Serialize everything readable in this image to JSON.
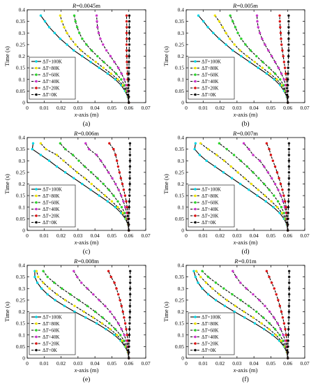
{
  "figure": {
    "legend_labels": [
      "ΔT=100K",
      "ΔT=80K",
      "ΔT=60K",
      "ΔT=40K",
      "ΔT=20K",
      "ΔT=0K"
    ],
    "series_colors": [
      "#00d8e8",
      "#f2e600",
      "#2bd42b",
      "#cc33cc",
      "#dd1111",
      "#111111"
    ],
    "line_color": "#000000"
  },
  "chart_data": [
    {
      "type": "line",
      "title": "R=0.0045m",
      "panel_label": "(a)",
      "xlabel": "x-axis (m)",
      "ylabel": "Time (s)",
      "xlim": [
        0,
        0.07
      ],
      "ylim": [
        0,
        0.4
      ],
      "xticks": [
        "0",
        "0.01",
        "0.02",
        "0.03",
        "0.04",
        "0.05",
        "0.06",
        "0.07"
      ],
      "yticks": [
        "0",
        "0.05",
        "0.1",
        "0.15",
        "0.2",
        "0.25",
        "0.3",
        "0.35",
        "0.4"
      ],
      "legend_position": "lower-left",
      "y": [
        0.0,
        0.025,
        0.05,
        0.075,
        0.1,
        0.125,
        0.15,
        0.175,
        0.2,
        0.225,
        0.25,
        0.275,
        0.3,
        0.325,
        0.35,
        0.375
      ],
      "series": [
        {
          "name": "ΔT=100K",
          "x": [
            0.06,
            0.0594,
            0.0578,
            0.0555,
            0.052,
            0.0475,
            0.0425,
            0.0375,
            0.0325,
            0.0275,
            0.0235,
            0.0195,
            0.0162,
            0.013,
            0.0105,
            0.008
          ]
        },
        {
          "name": "ΔT=80K",
          "x": [
            0.06,
            0.0596,
            0.0584,
            0.0565,
            0.0535,
            0.0495,
            0.045,
            0.0405,
            0.036,
            0.0318,
            0.0285,
            0.0258,
            0.0235,
            0.0218,
            0.0205,
            0.0195
          ]
        },
        {
          "name": "ΔT=60K",
          "x": [
            0.06,
            0.0597,
            0.0588,
            0.0575,
            0.0555,
            0.0525,
            0.049,
            0.0452,
            0.0415,
            0.038,
            0.035,
            0.0325,
            0.0308,
            0.0295,
            0.0285,
            0.0278
          ]
        },
        {
          "name": "ΔT=40K",
          "x": [
            0.06,
            0.0598,
            0.0593,
            0.0585,
            0.0573,
            0.0557,
            0.0538,
            0.0515,
            0.0492,
            0.0468,
            0.0448,
            0.0432,
            0.0422,
            0.0415,
            0.0412,
            0.041
          ]
        },
        {
          "name": "ΔT=20K",
          "x": [
            0.06,
            0.0599,
            0.0597,
            0.0595,
            0.0593,
            0.0592,
            0.059,
            0.0589,
            0.0588,
            0.0587,
            0.0587,
            0.0588,
            0.0587,
            0.0588,
            0.0587,
            0.0587
          ]
        },
        {
          "name": "ΔT=0K",
          "x": [
            0.06,
            0.06,
            0.06,
            0.06,
            0.06,
            0.06,
            0.0601,
            0.0601,
            0.0602,
            0.0602,
            0.0603,
            0.0603,
            0.0603,
            0.0603,
            0.0603,
            0.0603
          ]
        }
      ]
    },
    {
      "type": "line",
      "title": "R=0.005m",
      "panel_label": "(b)",
      "xlabel": "x-axis (m)",
      "ylabel": "Time (s)",
      "xlim": [
        0,
        0.07
      ],
      "ylim": [
        0,
        0.4
      ],
      "xticks": [
        "0",
        "0.01",
        "0.02",
        "0.03",
        "0.04",
        "0.05",
        "0.06",
        "0.07"
      ],
      "yticks": [
        "0",
        "0.05",
        "0.1",
        "0.15",
        "0.2",
        "0.25",
        "0.3",
        "0.35",
        "0.4"
      ],
      "legend_position": "lower-left",
      "y": [
        0.0,
        0.025,
        0.05,
        0.075,
        0.1,
        0.125,
        0.15,
        0.175,
        0.2,
        0.225,
        0.25,
        0.275,
        0.3,
        0.325,
        0.35,
        0.375
      ],
      "series": [
        {
          "name": "ΔT=100K",
          "x": [
            0.06,
            0.0594,
            0.0578,
            0.0555,
            0.052,
            0.0475,
            0.0425,
            0.0375,
            0.0325,
            0.0275,
            0.0235,
            0.0195,
            0.016,
            0.0128,
            0.0102,
            0.0072
          ]
        },
        {
          "name": "ΔT=80K",
          "x": [
            0.06,
            0.0596,
            0.0584,
            0.0565,
            0.0535,
            0.0495,
            0.045,
            0.0405,
            0.036,
            0.0318,
            0.0285,
            0.0258,
            0.0235,
            0.0215,
            0.0195,
            0.017
          ]
        },
        {
          "name": "ΔT=60K",
          "x": [
            0.06,
            0.0597,
            0.0588,
            0.0575,
            0.0555,
            0.0525,
            0.049,
            0.0452,
            0.0415,
            0.038,
            0.035,
            0.0325,
            0.0305,
            0.029,
            0.0275,
            0.026
          ]
        },
        {
          "name": "ΔT=40K",
          "x": [
            0.06,
            0.0598,
            0.0594,
            0.0587,
            0.0577,
            0.0562,
            0.0545,
            0.0525,
            0.0505,
            0.0485,
            0.0465,
            0.0448,
            0.0435,
            0.0425,
            0.042,
            0.0418
          ]
        },
        {
          "name": "ΔT=20K",
          "x": [
            0.06,
            0.06,
            0.0598,
            0.0595,
            0.0592,
            0.0588,
            0.0583,
            0.0578,
            0.0573,
            0.0568,
            0.0563,
            0.056,
            0.0558,
            0.0555,
            0.0553,
            0.0552
          ]
        },
        {
          "name": "ΔT=0K",
          "x": [
            0.06,
            0.06,
            0.06,
            0.06,
            0.06,
            0.0601,
            0.0602,
            0.0603,
            0.0604,
            0.0605,
            0.0605,
            0.0605,
            0.0605,
            0.0605,
            0.0605,
            0.0605
          ]
        }
      ]
    },
    {
      "type": "line",
      "title": "R=0.006m",
      "panel_label": "(c)",
      "xlabel": "x-axis (m)",
      "ylabel": "Time (s)",
      "xlim": [
        0,
        0.07
      ],
      "ylim": [
        0,
        0.4
      ],
      "xticks": [
        "0",
        "0.01",
        "0.02",
        "0.03",
        "0.04",
        "0.05",
        "0.06",
        "0.07"
      ],
      "yticks": [
        "0",
        "0.05",
        "0.1",
        "0.15",
        "0.2",
        "0.25",
        "0.3",
        "0.35",
        "0.4"
      ],
      "legend_position": "lower-left",
      "y": [
        0.0,
        0.025,
        0.05,
        0.075,
        0.1,
        0.125,
        0.15,
        0.175,
        0.2,
        0.225,
        0.25,
        0.275,
        0.3,
        0.325,
        0.35,
        0.375
      ],
      "series": [
        {
          "name": "ΔT=100K",
          "x": [
            0.06,
            0.0595,
            0.058,
            0.0555,
            0.052,
            0.0475,
            0.0425,
            0.0375,
            0.0325,
            0.0275,
            0.0225,
            0.0175,
            0.013,
            0.008,
            0.003,
            0.0035
          ]
        },
        {
          "name": "ΔT=80K",
          "x": [
            0.06,
            0.0596,
            0.0584,
            0.0565,
            0.0535,
            0.05,
            0.046,
            0.042,
            0.038,
            0.034,
            0.0295,
            0.0255,
            0.0215,
            0.0175,
            0.011,
            0.008
          ]
        },
        {
          "name": "ΔT=60K",
          "x": [
            0.06,
            0.0597,
            0.0589,
            0.0576,
            0.0558,
            0.0535,
            0.051,
            0.0482,
            0.045,
            0.0415,
            0.0378,
            0.034,
            0.0305,
            0.027,
            0.0225,
            0.0195
          ]
        },
        {
          "name": "ΔT=40K",
          "x": [
            0.06,
            0.0598,
            0.0594,
            0.0588,
            0.0579,
            0.0568,
            0.0555,
            0.054,
            0.0522,
            0.0502,
            0.048,
            0.0458,
            0.0435,
            0.041,
            0.0365,
            0.0345
          ]
        },
        {
          "name": "ΔT=20K",
          "x": [
            0.06,
            0.0599,
            0.0597,
            0.0594,
            0.059,
            0.0585,
            0.0578,
            0.057,
            0.0562,
            0.0553,
            0.0545,
            0.0537,
            0.053,
            0.0522,
            0.051,
            0.0485
          ]
        },
        {
          "name": "ΔT=0K",
          "x": [
            0.06,
            0.06,
            0.06,
            0.0601,
            0.0602,
            0.0603,
            0.0604,
            0.0605,
            0.0606,
            0.0606,
            0.0606,
            0.0607,
            0.0607,
            0.0607,
            0.0607,
            0.0607
          ]
        }
      ]
    },
    {
      "type": "line",
      "title": "R=0.007m",
      "panel_label": "(d)",
      "xlabel": "x-axis (m)",
      "ylabel": "Time (s)",
      "xlim": [
        0,
        0.07
      ],
      "ylim": [
        0,
        0.4
      ],
      "xticks": [
        "0",
        "0.01",
        "0.02",
        "0.03",
        "0.04",
        "0.05",
        "0.06",
        "0.07"
      ],
      "yticks": [
        "0",
        "0.05",
        "0.1",
        "0.15",
        "0.2",
        "0.25",
        "0.3",
        "0.35",
        "0.4"
      ],
      "legend_position": "lower-left",
      "y": [
        0.0,
        0.025,
        0.05,
        0.075,
        0.1,
        0.125,
        0.15,
        0.175,
        0.2,
        0.225,
        0.25,
        0.275,
        0.3,
        0.325,
        0.35,
        0.375
      ],
      "series": [
        {
          "name": "ΔT=100K",
          "x": [
            0.06,
            0.0594,
            0.0578,
            0.0552,
            0.0515,
            0.047,
            0.042,
            0.037,
            0.032,
            0.027,
            0.022,
            0.017,
            0.012,
            0.008,
            0.005,
            0.0055
          ]
        },
        {
          "name": "ΔT=80K",
          "x": [
            0.06,
            0.0596,
            0.0585,
            0.0566,
            0.0538,
            0.0503,
            0.0465,
            0.0425,
            0.0385,
            0.0345,
            0.0305,
            0.0265,
            0.0225,
            0.018,
            0.013,
            0.0085
          ]
        },
        {
          "name": "ΔT=60K",
          "x": [
            0.06,
            0.0597,
            0.059,
            0.0578,
            0.0562,
            0.0542,
            0.0518,
            0.049,
            0.046,
            0.0428,
            0.0395,
            0.036,
            0.0322,
            0.0282,
            0.024,
            0.0195
          ]
        },
        {
          "name": "ΔT=40K",
          "x": [
            0.06,
            0.0598,
            0.0595,
            0.059,
            0.0582,
            0.0572,
            0.0559,
            0.0543,
            0.0525,
            0.0505,
            0.0483,
            0.046,
            0.0435,
            0.0395,
            0.037,
            0.034
          ]
        },
        {
          "name": "ΔT=20K",
          "x": [
            0.06,
            0.0599,
            0.0597,
            0.0594,
            0.059,
            0.0584,
            0.0576,
            0.0568,
            0.0558,
            0.0548,
            0.0537,
            0.0525,
            0.0512,
            0.05,
            0.049,
            0.0475
          ]
        },
        {
          "name": "ΔT=0K",
          "x": [
            0.06,
            0.06,
            0.0601,
            0.0602,
            0.0603,
            0.0604,
            0.0605,
            0.0606,
            0.0606,
            0.0607,
            0.0607,
            0.0607,
            0.0607,
            0.0607,
            0.0607,
            0.0607
          ]
        }
      ]
    },
    {
      "type": "line",
      "title": "R=0.008m",
      "panel_label": "(e)",
      "xlabel": "x-axis (m)",
      "ylabel": "Time (s)",
      "xlim": [
        0,
        0.07
      ],
      "ylim": [
        0,
        0.4
      ],
      "xticks": [
        "0",
        "0.01",
        "0.02",
        "0.03",
        "0.04",
        "0.05",
        "0.06",
        "0.07"
      ],
      "yticks": [
        "0",
        "0.05",
        "0.1",
        "0.15",
        "0.2",
        "0.25",
        "0.3",
        "0.35",
        "0.4"
      ],
      "legend_position": "lower-left",
      "y": [
        0.0,
        0.025,
        0.05,
        0.075,
        0.1,
        0.125,
        0.15,
        0.175,
        0.2,
        0.225,
        0.25,
        0.275,
        0.3,
        0.325,
        0.35,
        0.375
      ],
      "series": [
        {
          "name": "ΔT=100K",
          "x": [
            0.06,
            0.0594,
            0.0578,
            0.0552,
            0.0515,
            0.0465,
            0.041,
            0.0345,
            0.028,
            0.022,
            0.0165,
            0.012,
            0.0085,
            0.006,
            0.0045,
            0.0045
          ]
        },
        {
          "name": "ΔT=80K",
          "x": [
            0.06,
            0.0595,
            0.0582,
            0.056,
            0.053,
            0.049,
            0.0442,
            0.039,
            0.0335,
            0.028,
            0.0225,
            0.0175,
            0.0132,
            0.0095,
            0.0065,
            0.0055
          ]
        },
        {
          "name": "ΔT=60K",
          "x": [
            0.06,
            0.0597,
            0.0588,
            0.0572,
            0.055,
            0.052,
            0.0485,
            0.0445,
            0.0402,
            0.0355,
            0.0305,
            0.0255,
            0.0205,
            0.016,
            0.012,
            0.0095
          ]
        },
        {
          "name": "ΔT=40K",
          "x": [
            0.06,
            0.0598,
            0.0593,
            0.0585,
            0.0573,
            0.0557,
            0.0538,
            0.0515,
            0.049,
            0.046,
            0.0425,
            0.039,
            0.0355,
            0.032,
            0.0295,
            0.0275
          ]
        },
        {
          "name": "ΔT=20K",
          "x": [
            0.06,
            0.0599,
            0.0597,
            0.0594,
            0.059,
            0.0585,
            0.0579,
            0.0572,
            0.0565,
            0.0557,
            0.0548,
            0.0538,
            0.0527,
            0.0515,
            0.0495,
            0.048
          ]
        },
        {
          "name": "ΔT=0K",
          "x": [
            0.06,
            0.06,
            0.0601,
            0.0602,
            0.0603,
            0.0604,
            0.0605,
            0.0606,
            0.0607,
            0.0607,
            0.0608,
            0.0608,
            0.0608,
            0.0608,
            0.0608,
            0.0608
          ]
        }
      ]
    },
    {
      "type": "line",
      "title": "R=0.01m",
      "panel_label": "(f)",
      "xlabel": "x-axis (m)",
      "ylabel": "Time (s)",
      "xlim": [
        0,
        0.07
      ],
      "ylim": [
        0,
        0.4
      ],
      "xticks": [
        "0",
        "0.01",
        "0.02",
        "0.03",
        "0.04",
        "0.05",
        "0.06",
        "0.07"
      ],
      "yticks": [
        "0",
        "0.05",
        "0.1",
        "0.15",
        "0.2",
        "0.25",
        "0.3",
        "0.35",
        "0.4"
      ],
      "legend_position": "lower-left",
      "y": [
        0.0,
        0.025,
        0.05,
        0.075,
        0.1,
        0.125,
        0.15,
        0.175,
        0.2,
        0.225,
        0.25,
        0.275,
        0.3,
        0.325,
        0.35,
        0.375
      ],
      "series": [
        {
          "name": "ΔT=100K",
          "x": [
            0.06,
            0.0594,
            0.0578,
            0.055,
            0.051,
            0.046,
            0.0405,
            0.0345,
            0.0285,
            0.0228,
            0.0175,
            0.013,
            0.0095,
            0.007,
            0.0055,
            0.0045
          ]
        },
        {
          "name": "ΔT=80K",
          "x": [
            0.06,
            0.0595,
            0.0582,
            0.056,
            0.053,
            0.049,
            0.0445,
            0.0395,
            0.0342,
            0.029,
            0.024,
            0.0195,
            0.0155,
            0.0118,
            0.0085,
            0.006
          ]
        },
        {
          "name": "ΔT=60K",
          "x": [
            0.06,
            0.0597,
            0.0588,
            0.0573,
            0.0552,
            0.0525,
            0.0492,
            0.0455,
            0.0415,
            0.037,
            0.0322,
            0.0272,
            0.0222,
            0.0175,
            0.013,
            0.0095
          ]
        },
        {
          "name": "ΔT=40K",
          "x": [
            0.06,
            0.0598,
            0.0593,
            0.0585,
            0.0573,
            0.0558,
            0.054,
            0.0518,
            0.0493,
            0.0465,
            0.0432,
            0.0395,
            0.0355,
            0.032,
            0.0295,
            0.0275
          ]
        },
        {
          "name": "ΔT=20K",
          "x": [
            0.06,
            0.0599,
            0.0597,
            0.0594,
            0.059,
            0.0585,
            0.0578,
            0.057,
            0.0562,
            0.0553,
            0.0543,
            0.0532,
            0.052,
            0.0505,
            0.049,
            0.0475
          ]
        },
        {
          "name": "ΔT=0K",
          "x": [
            0.06,
            0.06,
            0.0601,
            0.0602,
            0.0603,
            0.0604,
            0.0605,
            0.0606,
            0.0607,
            0.0607,
            0.0608,
            0.0608,
            0.0608,
            0.0608,
            0.0608,
            0.0608
          ]
        }
      ]
    }
  ]
}
